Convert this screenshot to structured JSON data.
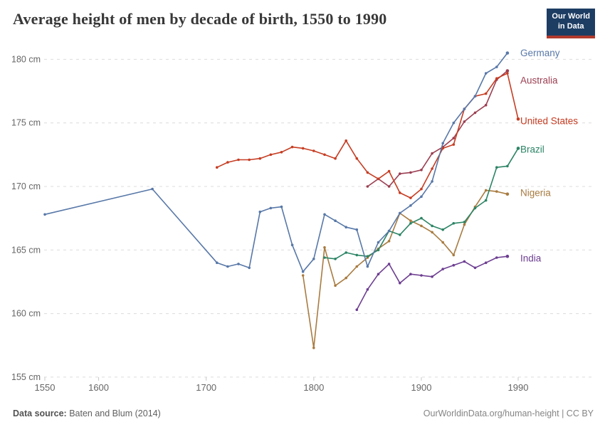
{
  "header": {
    "title": "Average height of men by decade of birth, 1550 to 1990",
    "logo_line1": "Our World",
    "logo_line2": "in Data"
  },
  "footer": {
    "source_label": "Data source:",
    "source_value": "Baten and Blum (2014)",
    "credit": "OurWorldinData.org/human-height | CC BY"
  },
  "colors": {
    "background": "#ffffff",
    "grid": "#dcdcdc",
    "tick": "#c9c9c9",
    "axis_text": "#666666",
    "title_text": "#383838",
    "logo_bg": "#1d3d63",
    "logo_accent": "#b13a2d"
  },
  "chart_data": {
    "type": "line",
    "title": "Average height of men by decade of birth, 1550 to 1990",
    "xlabel": "",
    "ylabel": "cm",
    "x_domain": [
      1550,
      1990
    ],
    "y_domain": [
      155,
      181
    ],
    "grid": "dashed-horizontal",
    "legend_position": "right-of-line-ends",
    "x_ticks": [
      {
        "value": 1550,
        "label": "1550"
      },
      {
        "value": 1600,
        "label": "1600"
      },
      {
        "value": 1700,
        "label": "1700"
      },
      {
        "value": 1800,
        "label": "1800"
      },
      {
        "value": 1900,
        "label": "1900"
      },
      {
        "value": 1990,
        "label": "1990"
      }
    ],
    "y_ticks": [
      {
        "value": 155,
        "label": "155 cm"
      },
      {
        "value": 160,
        "label": "160 cm"
      },
      {
        "value": 165,
        "label": "165 cm"
      },
      {
        "value": 170,
        "label": "170 cm"
      },
      {
        "value": 175,
        "label": "175 cm"
      },
      {
        "value": 180,
        "label": "180 cm"
      }
    ],
    "series": [
      {
        "id": "india",
        "name": "India",
        "color": "#6d3e91",
        "points": [
          [
            1840,
            160.3
          ],
          [
            1850,
            161.9
          ],
          [
            1860,
            163.1
          ],
          [
            1870,
            163.9
          ],
          [
            1880,
            162.4
          ],
          [
            1890,
            163.1
          ],
          [
            1900,
            163.0
          ],
          [
            1910,
            162.9
          ],
          [
            1920,
            163.5
          ],
          [
            1930,
            163.8
          ],
          [
            1940,
            164.1
          ],
          [
            1950,
            163.6
          ],
          [
            1960,
            164.0
          ],
          [
            1970,
            164.4
          ],
          [
            1980,
            164.5
          ]
        ]
      },
      {
        "id": "nigeria",
        "name": "Nigeria",
        "color": "#a87b40",
        "points": [
          [
            1790,
            163.0
          ],
          [
            1800,
            157.3
          ],
          [
            1810,
            165.2
          ],
          [
            1820,
            162.2
          ],
          [
            1830,
            162.8
          ],
          [
            1840,
            163.7
          ],
          [
            1850,
            164.4
          ],
          [
            1860,
            165.1
          ],
          [
            1870,
            165.7
          ],
          [
            1880,
            167.9
          ],
          [
            1890,
            167.3
          ],
          [
            1900,
            166.9
          ],
          [
            1910,
            166.4
          ],
          [
            1920,
            165.6
          ],
          [
            1930,
            164.6
          ],
          [
            1940,
            167.0
          ],
          [
            1950,
            168.4
          ],
          [
            1960,
            169.7
          ],
          [
            1970,
            169.6
          ],
          [
            1980,
            169.4
          ]
        ]
      },
      {
        "id": "brazil",
        "name": "Brazil",
        "color": "#2c8465",
        "points": [
          [
            1810,
            164.4
          ],
          [
            1820,
            164.3
          ],
          [
            1830,
            164.8
          ],
          [
            1840,
            164.6
          ],
          [
            1850,
            164.5
          ],
          [
            1860,
            165.0
          ],
          [
            1870,
            166.5
          ],
          [
            1880,
            166.2
          ],
          [
            1890,
            167.1
          ],
          [
            1900,
            167.5
          ],
          [
            1910,
            166.9
          ],
          [
            1920,
            166.6
          ],
          [
            1930,
            167.1
          ],
          [
            1940,
            167.2
          ],
          [
            1950,
            168.3
          ],
          [
            1960,
            168.9
          ],
          [
            1970,
            171.5
          ],
          [
            1980,
            171.6
          ],
          [
            1990,
            173.0
          ]
        ]
      },
      {
        "id": "australia",
        "name": "Australia",
        "color": "#9b3f52",
        "points": [
          [
            1850,
            170.0
          ],
          [
            1860,
            170.6
          ],
          [
            1870,
            170.0
          ],
          [
            1880,
            171.0
          ],
          [
            1890,
            171.1
          ],
          [
            1900,
            171.3
          ],
          [
            1910,
            172.6
          ],
          [
            1920,
            173.1
          ],
          [
            1930,
            173.8
          ],
          [
            1940,
            175.1
          ],
          [
            1950,
            175.8
          ],
          [
            1960,
            176.4
          ],
          [
            1970,
            178.4
          ],
          [
            1980,
            179.1
          ]
        ]
      },
      {
        "id": "united-states",
        "name": "United States",
        "color": "#c63d23",
        "points": [
          [
            1710,
            171.5
          ],
          [
            1720,
            171.9
          ],
          [
            1730,
            172.1
          ],
          [
            1740,
            172.1
          ],
          [
            1750,
            172.2
          ],
          [
            1760,
            172.5
          ],
          [
            1770,
            172.7
          ],
          [
            1780,
            173.1
          ],
          [
            1790,
            173.0
          ],
          [
            1800,
            172.8
          ],
          [
            1810,
            172.5
          ],
          [
            1820,
            172.2
          ],
          [
            1830,
            173.6
          ],
          [
            1840,
            172.2
          ],
          [
            1850,
            171.1
          ],
          [
            1860,
            170.6
          ],
          [
            1870,
            171.2
          ],
          [
            1880,
            169.5
          ],
          [
            1890,
            169.1
          ],
          [
            1900,
            169.8
          ],
          [
            1910,
            171.4
          ],
          [
            1920,
            173.0
          ],
          [
            1930,
            173.3
          ],
          [
            1940,
            176.1
          ],
          [
            1950,
            177.1
          ],
          [
            1960,
            177.3
          ],
          [
            1970,
            178.5
          ],
          [
            1980,
            178.9
          ],
          [
            1990,
            175.3
          ]
        ]
      },
      {
        "id": "germany",
        "name": "Germany",
        "color": "#5878a8",
        "points": [
          [
            1550,
            167.8
          ],
          [
            1650,
            169.8
          ],
          [
            1710,
            164.0
          ],
          [
            1720,
            163.7
          ],
          [
            1730,
            163.9
          ],
          [
            1740,
            163.6
          ],
          [
            1750,
            168.0
          ],
          [
            1760,
            168.3
          ],
          [
            1770,
            168.4
          ],
          [
            1780,
            165.4
          ],
          [
            1790,
            163.3
          ],
          [
            1800,
            164.3
          ],
          [
            1810,
            167.8
          ],
          [
            1820,
            167.3
          ],
          [
            1830,
            166.8
          ],
          [
            1840,
            166.6
          ],
          [
            1850,
            163.7
          ],
          [
            1860,
            165.6
          ],
          [
            1870,
            166.5
          ],
          [
            1880,
            167.9
          ],
          [
            1890,
            168.5
          ],
          [
            1900,
            169.2
          ],
          [
            1910,
            170.4
          ],
          [
            1920,
            173.4
          ],
          [
            1930,
            175.0
          ],
          [
            1940,
            176.1
          ],
          [
            1950,
            177.1
          ],
          [
            1960,
            178.9
          ],
          [
            1970,
            179.4
          ],
          [
            1980,
            180.5
          ]
        ]
      }
    ]
  }
}
